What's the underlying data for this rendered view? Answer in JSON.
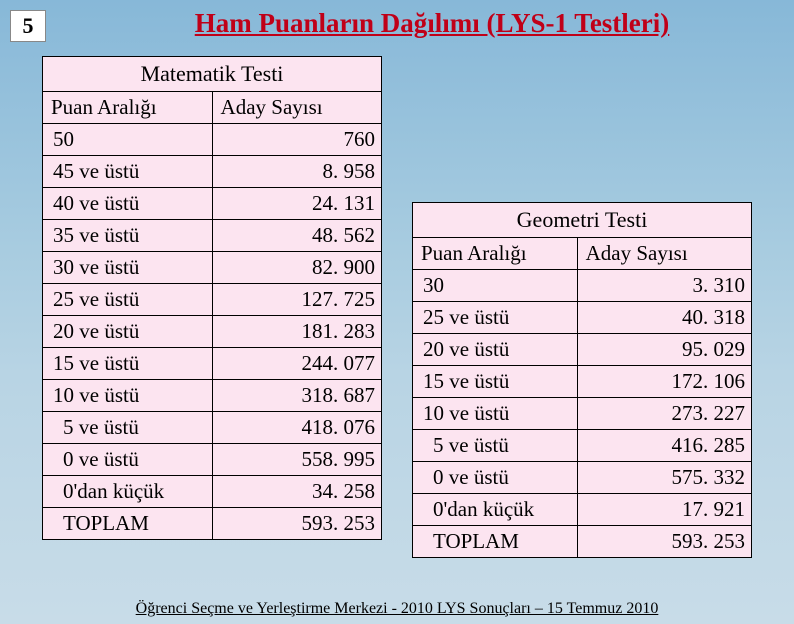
{
  "page_number": "5",
  "title": "Ham Puanların Dağılımı (LYS-1  Testleri)",
  "footer": "Öğrenci Seçme ve Yerleştirme Merkezi - 2010 LYS Sonuçları – 15 Temmuz 2010",
  "math_table": {
    "caption": "Matematik Testi",
    "col1": "Puan Aralığı",
    "col2": "Aday Sayısı",
    "rows": [
      {
        "label": "50",
        "value": "760",
        "indent": false
      },
      {
        "label": "45 ve üstü",
        "value": "8. 958",
        "indent": false
      },
      {
        "label": "40 ve üstü",
        "value": "24. 131",
        "indent": false
      },
      {
        "label": "35 ve üstü",
        "value": "48. 562",
        "indent": false
      },
      {
        "label": "30 ve üstü",
        "value": "82. 900",
        "indent": false
      },
      {
        "label": "25 ve üstü",
        "value": "127. 725",
        "indent": false
      },
      {
        "label": "20 ve üstü",
        "value": "181. 283",
        "indent": false
      },
      {
        "label": "15 ve üstü",
        "value": "244. 077",
        "indent": false
      },
      {
        "label": "10 ve üstü",
        "value": "318. 687",
        "indent": false
      },
      {
        "label": "5 ve üstü",
        "value": "418. 076",
        "indent": true
      },
      {
        "label": "0 ve üstü",
        "value": "558. 995",
        "indent": true
      },
      {
        "label": "0'dan küçük",
        "value": "34. 258",
        "indent": true
      },
      {
        "label": "TOPLAM",
        "value": "593. 253",
        "indent": true
      }
    ]
  },
  "geo_table": {
    "caption": "Geometri Testi",
    "col1": "Puan Aralığı",
    "col2": "Aday Sayısı",
    "rows": [
      {
        "label": "30",
        "value": "3. 310",
        "indent": false
      },
      {
        "label": "25 ve üstü",
        "value": "40. 318",
        "indent": false
      },
      {
        "label": "20 ve üstü",
        "value": "95. 029",
        "indent": false
      },
      {
        "label": "15 ve üstü",
        "value": "172. 106",
        "indent": false
      },
      {
        "label": "10 ve üstü",
        "value": "273. 227",
        "indent": false
      },
      {
        "label": "5 ve üstü",
        "value": "416. 285",
        "indent": true
      },
      {
        "label": "0 ve üstü",
        "value": "575. 332",
        "indent": true
      },
      {
        "label": "0'dan küçük",
        "value": "17. 921",
        "indent": true
      },
      {
        "label": "TOPLAM",
        "value": "593. 253",
        "indent": true
      }
    ]
  }
}
